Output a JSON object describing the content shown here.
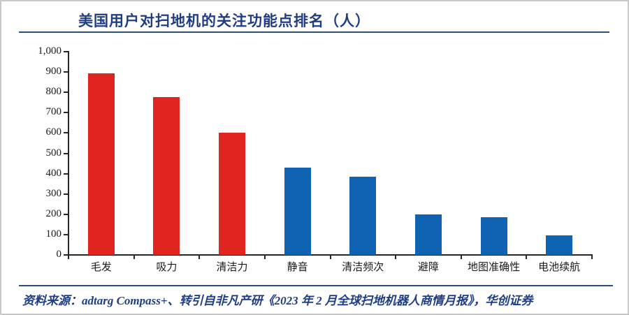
{
  "header": {
    "title": "美国用户对扫地机的关注功能点排名（人）"
  },
  "footer": {
    "source": "资料来源：adtarg Compass+、转引自非凡产研《2023 年 2 月全球扫地机器人商情月报》，华创证券"
  },
  "colors": {
    "red_bar": "#e0241f",
    "blue_bar": "#1063b2",
    "navy_text": "#1f3d85",
    "rule_line": "#2b4f81",
    "axis": "#262626",
    "frame_border": "#c9c9c9"
  },
  "chart_data": {
    "type": "bar",
    "title": "美国用户对扫地机的关注功能点排名（人）",
    "categories": [
      "毛发",
      "吸力",
      "清洁力",
      "静音",
      "清洁频次",
      "避障",
      "地图准确性",
      "电池续航"
    ],
    "values": [
      895,
      775,
      600,
      430,
      385,
      200,
      185,
      95
    ],
    "bar_colors": [
      "#e0241f",
      "#e0241f",
      "#e0241f",
      "#1063b2",
      "#1063b2",
      "#1063b2",
      "#1063b2",
      "#1063b2"
    ],
    "xlabel": "",
    "ylabel": "",
    "ylim": [
      0,
      1000
    ],
    "ytick_step": 100,
    "ytick_labels": [
      "0",
      "100",
      "200",
      "300",
      "400",
      "500",
      "600",
      "700",
      "800",
      "900",
      "1,000"
    ],
    "grid": "off",
    "legend": "none"
  }
}
